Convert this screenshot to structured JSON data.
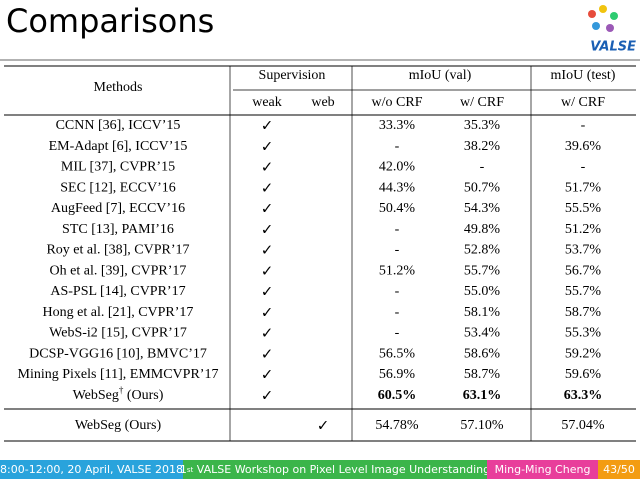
{
  "header": {
    "title": "Comparisons",
    "logo": "VALSE"
  },
  "table": {
    "head": {
      "methods": "Methods",
      "supervision": "Supervision",
      "val": "mIoU (val)",
      "test": "mIoU (test)",
      "sub": [
        "weak",
        "web",
        "w/o CRF",
        "w/ CRF",
        "w/ CRF"
      ]
    },
    "rows": [
      {
        "method": "CCNN [36], ICCV’15",
        "cells": [
          "✓",
          null,
          "33.3%",
          "35.3%",
          "-"
        ]
      },
      {
        "method": "EM-Adapt [6], ICCV’15",
        "cells": [
          "✓",
          null,
          "-",
          "38.2%",
          "39.6%"
        ]
      },
      {
        "method": "MIL [37], CVPR’15",
        "cells": [
          "✓",
          null,
          "42.0%",
          "-",
          "-"
        ]
      },
      {
        "method": "SEC [12], ECCV’16",
        "cells": [
          "✓",
          null,
          "44.3%",
          "50.7%",
          "51.7%"
        ]
      },
      {
        "method": "AugFeed [7], ECCV’16",
        "cells": [
          "✓",
          null,
          "50.4%",
          "54.3%",
          "55.5%"
        ]
      },
      {
        "method": "STC [13], PAMI’16",
        "cells": [
          "✓",
          null,
          "-",
          "49.8%",
          "51.2%"
        ]
      },
      {
        "method": "Roy et al. [38], CVPR’17",
        "cells": [
          "✓",
          null,
          "-",
          "52.8%",
          "53.7%"
        ]
      },
      {
        "method": "Oh et al. [39], CVPR’17",
        "cells": [
          "✓",
          null,
          "51.2%",
          "55.7%",
          "56.7%"
        ]
      },
      {
        "method": "AS-PSL [14], CVPR’17",
        "cells": [
          "✓",
          null,
          "-",
          "55.0%",
          "55.7%"
        ]
      },
      {
        "method": "Hong et al. [21], CVPR’17",
        "cells": [
          "✓",
          null,
          "-",
          "58.1%",
          "58.7%"
        ]
      },
      {
        "method": "WebS-i2 [15], CVPR’17",
        "cells": [
          "✓",
          null,
          "-",
          "53.4%",
          "55.3%"
        ]
      },
      {
        "method": "DCSP-VGG16 [10], BMVC’17",
        "cells": [
          "✓",
          null,
          "56.5%",
          "58.6%",
          "59.2%"
        ]
      },
      {
        "method": "Mining Pixels [11], EMMCVPR’17",
        "cells": [
          "✓",
          null,
          "56.9%",
          "58.7%",
          "59.6%"
        ]
      },
      {
        "method": "WebSeg",
        "method_sup": "†",
        "method_suffix": " (Ours)",
        "cells": [
          "✓",
          null,
          "60.5%",
          "63.1%",
          "63.3%"
        ]
      },
      {
        "method": "WebSeg (Ours)",
        "cells": [
          null,
          "✓",
          "54.78%",
          "57.10%",
          "57.04%"
        ]
      }
    ]
  },
  "footer": {
    "time": "8:00-12:00, 20 April, VALSE 2018",
    "workshop_num": "1",
    "workshop_sup": "st",
    "workshop": " VALSE Workshop on Pixel Level Image Understanding",
    "author": "Ming-Ming Cheng",
    "page": "43/50"
  }
}
